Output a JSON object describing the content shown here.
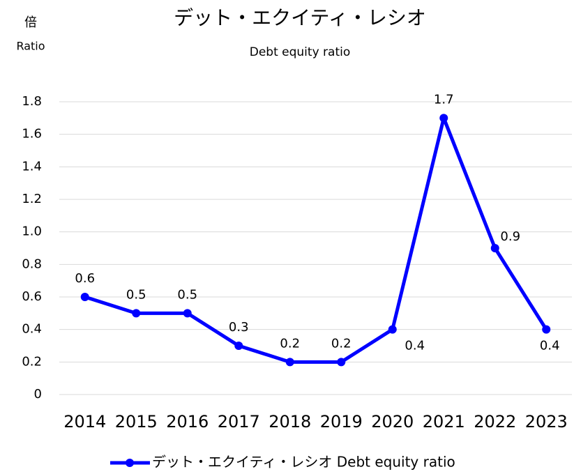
{
  "chart_data": {
    "type": "line",
    "title": "デット・エクイティ・レシオ",
    "subtitle": "Debt equity ratio",
    "y_label": [
      "倍",
      "Ratio"
    ],
    "categories": [
      "2014",
      "2015",
      "2016",
      "2017",
      "2018",
      "2019",
      "2020",
      "2021",
      "2022",
      "2023"
    ],
    "series": [
      {
        "name": "デット・エクイティ・レシオ Debt equity ratio",
        "color": "#0000ff",
        "values": [
          0.6,
          0.5,
          0.5,
          0.3,
          0.2,
          0.2,
          0.4,
          1.7,
          0.9,
          0.4
        ]
      }
    ],
    "ylim": [
      0,
      1.8
    ],
    "yticks": [
      0,
      0.2,
      0.4,
      0.6,
      0.8,
      {
        "value": 1,
        "label": "1.0"
      },
      1.2,
      1.4,
      1.6,
      1.8
    ],
    "grid": true,
    "legend": "bottom"
  }
}
